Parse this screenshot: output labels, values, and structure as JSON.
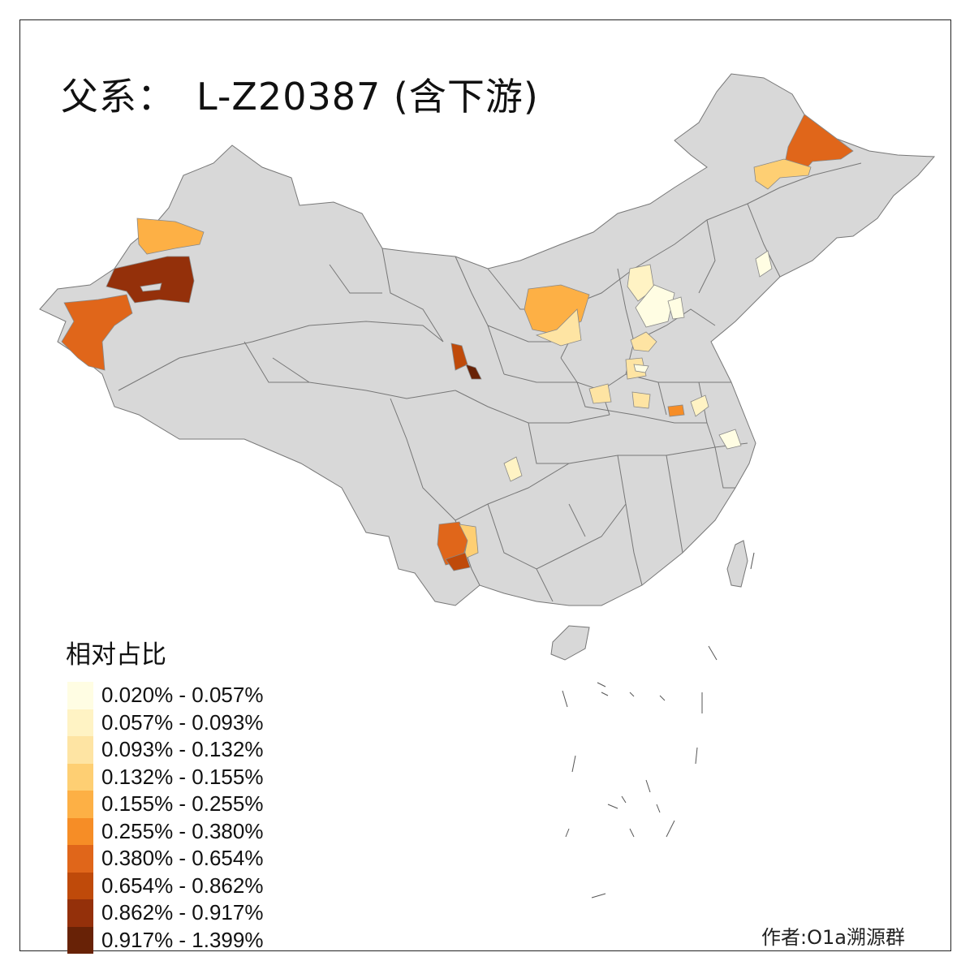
{
  "title": {
    "label": "父系：",
    "haplogroup": "L-Z20387 (含下游)"
  },
  "legend": {
    "title": "相对占比",
    "items": [
      {
        "range": "0.020% - 0.057%",
        "color": "#fffde3"
      },
      {
        "range": "0.057% - 0.093%",
        "color": "#fff3c4"
      },
      {
        "range": "0.093% - 0.132%",
        "color": "#fee4a3"
      },
      {
        "range": "0.132% - 0.155%",
        "color": "#fecf73"
      },
      {
        "range": "0.155% - 0.255%",
        "color": "#fdb045"
      },
      {
        "range": "0.255% - 0.380%",
        "color": "#f68d26"
      },
      {
        "range": "0.380% - 0.654%",
        "color": "#e0661a"
      },
      {
        "range": "0.654% - 0.862%",
        "color": "#bf4a0a"
      },
      {
        "range": "0.862% - 0.917%",
        "color": "#94300a"
      },
      {
        "range": "0.917% - 1.399%",
        "color": "#682206"
      }
    ]
  },
  "map_style": {
    "base_fill": "#d8d8d8",
    "border_color": "#777777"
  },
  "highlighted_regions": [
    {
      "area": "Xinjiang Yili",
      "class": 5
    },
    {
      "area": "Xinjiang Bortala",
      "class": 4
    },
    {
      "area": "Xinjiang Kashgar",
      "class": 6
    },
    {
      "area": "Xinjiang Aksu",
      "class": 8
    },
    {
      "area": "Heilongjiang Heihe",
      "class": 6
    },
    {
      "area": "Inner Mongolia Hulunbuir",
      "class": 3
    },
    {
      "area": "Inner Mongolia Baotou",
      "class": 4
    },
    {
      "area": "Inner Mongolia Ordos",
      "class": 2
    },
    {
      "area": "Gansu Lanzhou",
      "class": 7
    },
    {
      "area": "Gansu Dingxi",
      "class": 9
    },
    {
      "area": "Yunnan Pu'er",
      "class": 6
    },
    {
      "area": "Yunnan Xishuangbanna",
      "class": 7
    },
    {
      "area": "Yunnan Lincang",
      "class": 3
    },
    {
      "area": "Hebei Zhangjiakou",
      "class": 2
    },
    {
      "area": "Hebei Baoding",
      "class": 2
    },
    {
      "area": "Hebei Handan",
      "class": 3
    },
    {
      "area": "Henan Zhengzhou",
      "class": 2
    },
    {
      "area": "Anhui Fuyang",
      "class": 5
    },
    {
      "area": "Jiangsu Suzhou",
      "class": 0
    },
    {
      "area": "Sichuan Chengdu",
      "class": 1
    },
    {
      "area": "Liaoning Shenyang",
      "class": 1
    }
  ],
  "credit": "作者:O1a溯源群"
}
